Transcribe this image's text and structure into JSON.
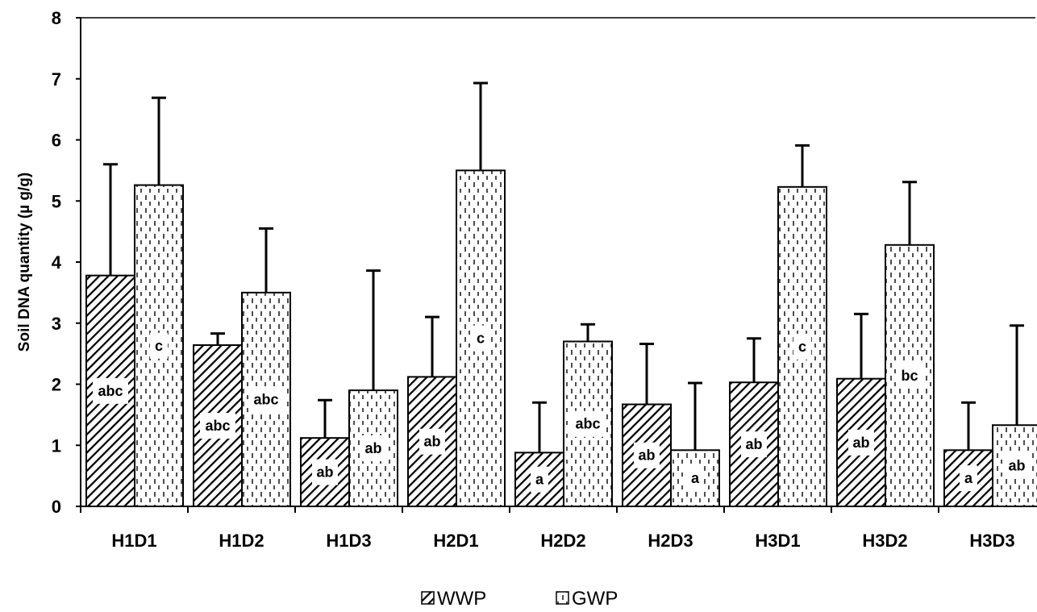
{
  "chart_data": {
    "type": "bar",
    "title": "",
    "xlabel": "",
    "ylabel": "Soil DNA quantity (µ g/g)",
    "ylim": [
      0,
      8
    ],
    "yticks": [
      0,
      1,
      2,
      3,
      4,
      5,
      6,
      7,
      8
    ],
    "categories": [
      "H1D1",
      "H1D2",
      "H1D3",
      "H2D1",
      "H2D2",
      "H2D3",
      "H3D1",
      "H3D2",
      "H3D3"
    ],
    "series": [
      {
        "name": "WWP",
        "pattern": "diagonal-hatch",
        "values": [
          3.78,
          2.64,
          1.12,
          2.12,
          0.88,
          1.67,
          2.03,
          2.09,
          0.92
        ],
        "error": [
          1.82,
          0.19,
          0.62,
          0.98,
          0.82,
          0.99,
          0.72,
          1.06,
          0.78
        ],
        "labels": [
          "abc",
          "abc",
          "ab",
          "ab",
          "a",
          "ab",
          "ab",
          "ab",
          "a"
        ]
      },
      {
        "name": "GWP",
        "pattern": "dotted",
        "values": [
          5.26,
          3.5,
          1.9,
          5.5,
          2.7,
          0.92,
          5.23,
          4.28,
          1.33
        ],
        "error": [
          1.43,
          1.05,
          1.96,
          1.43,
          0.28,
          1.1,
          0.68,
          1.03,
          1.63
        ],
        "labels": [
          "c",
          "abc",
          "ab",
          "c",
          "abc",
          "a",
          "c",
          "bc",
          "ab"
        ]
      }
    ],
    "legend": {
      "position": "bottom-center"
    },
    "grid": false
  }
}
